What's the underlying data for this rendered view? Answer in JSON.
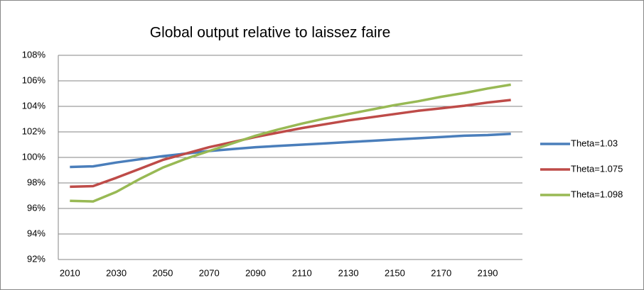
{
  "chart_data": {
    "type": "line",
    "title": "Global output relative to laissez faire",
    "categories": [
      "2010",
      null,
      "2030",
      null,
      "2050",
      null,
      "2070",
      null,
      "2090",
      null,
      "2110",
      null,
      "2130",
      null,
      "2150",
      null,
      "2170",
      null,
      "2190",
      null
    ],
    "series": [
      {
        "name": "Theta=1.03",
        "color": "#4a7ebb",
        "values": [
          99.25,
          99.3,
          99.6,
          99.85,
          100.1,
          100.3,
          100.5,
          100.65,
          100.8,
          100.9,
          101.0,
          101.1,
          101.2,
          101.3,
          101.4,
          101.5,
          101.6,
          101.7,
          101.75,
          101.85
        ]
      },
      {
        "name": "Theta=1.075",
        "color": "#be4b48",
        "values": [
          97.7,
          97.75,
          98.4,
          99.1,
          99.8,
          100.3,
          100.8,
          101.2,
          101.6,
          101.95,
          102.3,
          102.6,
          102.9,
          103.15,
          103.4,
          103.65,
          103.85,
          104.05,
          104.3,
          104.5
        ]
      },
      {
        "name": "Theta=1.098",
        "color": "#98b954",
        "values": [
          96.6,
          96.55,
          97.3,
          98.3,
          99.2,
          99.9,
          100.5,
          101.1,
          101.7,
          102.2,
          102.65,
          103.05,
          103.4,
          103.75,
          104.1,
          104.4,
          104.75,
          105.05,
          105.4,
          105.7
        ]
      }
    ],
    "ylim": [
      92,
      108
    ],
    "yticks": [
      {
        "value": 92,
        "label": "92%"
      },
      {
        "value": 94,
        "label": "94%"
      },
      {
        "value": 96,
        "label": "96%"
      },
      {
        "value": 98,
        "label": "98%"
      },
      {
        "value": 100,
        "label": "100%"
      },
      {
        "value": 102,
        "label": "102%"
      },
      {
        "value": 104,
        "label": "104%"
      },
      {
        "value": 106,
        "label": "106%"
      },
      {
        "value": 108,
        "label": "108%"
      }
    ],
    "grid": true,
    "legend": "right"
  }
}
